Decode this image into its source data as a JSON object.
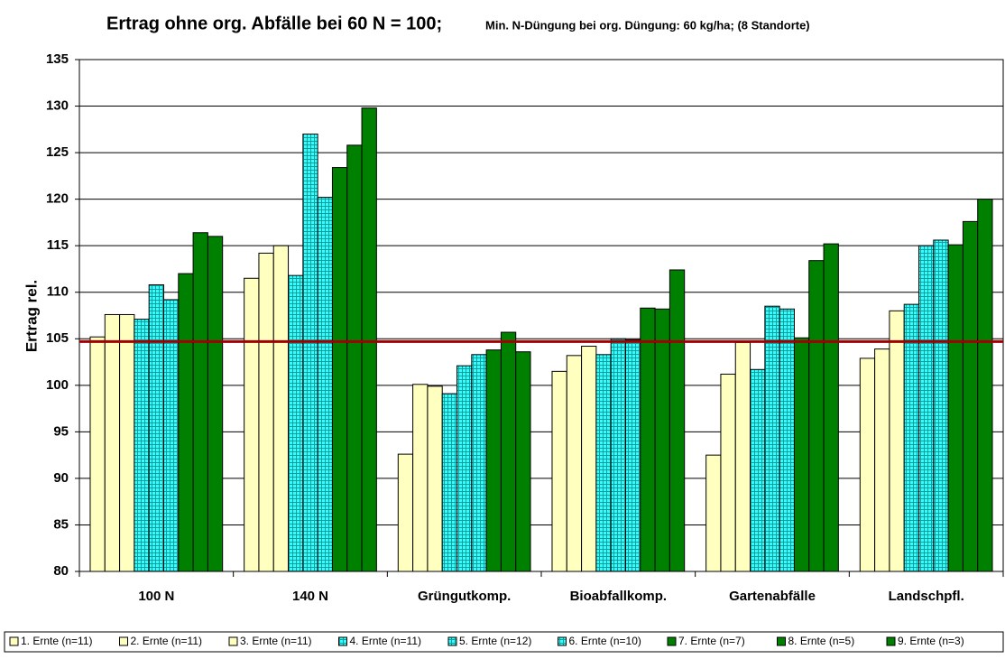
{
  "chart_data": {
    "type": "bar",
    "title": "Ertrag ohne org. Abfälle bei 60 N = 100;",
    "subtitle": "Min. N-Düngung bei org. Düngung:  60 kg/ha;   (8 Standorte)",
    "y_label": "Ertrag rel.",
    "categories": [
      "100 N",
      "140 N",
      "Grüngutkomp.",
      "Bioabfallkomp.",
      "Gartenabfälle",
      "Landschpfl."
    ],
    "series": [
      {
        "name": "1. Ernte (n=11)",
        "color": "#ffffc0",
        "values": [
          105.2,
          111.5,
          92.6,
          101.5,
          92.5,
          102.9
        ]
      },
      {
        "name": "2. Ernte (n=11)",
        "color": "#ffffc0",
        "values": [
          107.6,
          114.2,
          100.1,
          103.2,
          101.2,
          103.9
        ]
      },
      {
        "name": "3. Ernte (n=11)",
        "color": "#ffffc0",
        "values": [
          107.6,
          115.0,
          99.9,
          104.2,
          104.6,
          108.0
        ]
      },
      {
        "name": "4. Ernte (n=11)",
        "color": "#33ffff",
        "hatch": true,
        "values": [
          107.1,
          111.8,
          99.1,
          103.3,
          101.7,
          108.7
        ]
      },
      {
        "name": "5. Ernte (n=12)",
        "color": "#33ffff",
        "hatch": true,
        "values": [
          110.8,
          127.0,
          102.1,
          105.0,
          108.5,
          115.0
        ]
      },
      {
        "name": "6. Ernte (n=10)",
        "color": "#33ffff",
        "hatch": true,
        "values": [
          109.2,
          120.2,
          103.3,
          104.9,
          108.2,
          115.6
        ]
      },
      {
        "name": "7. Ernte (n=7)",
        "color": "#008000",
        "values": [
          112.0,
          123.4,
          103.8,
          108.3,
          105.1,
          115.1
        ]
      },
      {
        "name": "8. Ernte (n=5)",
        "color": "#008000",
        "values": [
          116.4,
          125.8,
          105.7,
          108.2,
          113.4,
          117.6
        ]
      },
      {
        "name": "9. Ernte (n=3)",
        "color": "#008000",
        "values": [
          116.0,
          129.8,
          103.6,
          112.4,
          115.2,
          120.0
        ]
      }
    ],
    "reference_line": {
      "value": 104.7,
      "color": "#a00000"
    },
    "ylim": [
      80,
      135
    ],
    "yticks": [
      80,
      85,
      90,
      95,
      100,
      105,
      110,
      115,
      120,
      125,
      130,
      135
    ],
    "grid": true,
    "legend": "bottom"
  }
}
